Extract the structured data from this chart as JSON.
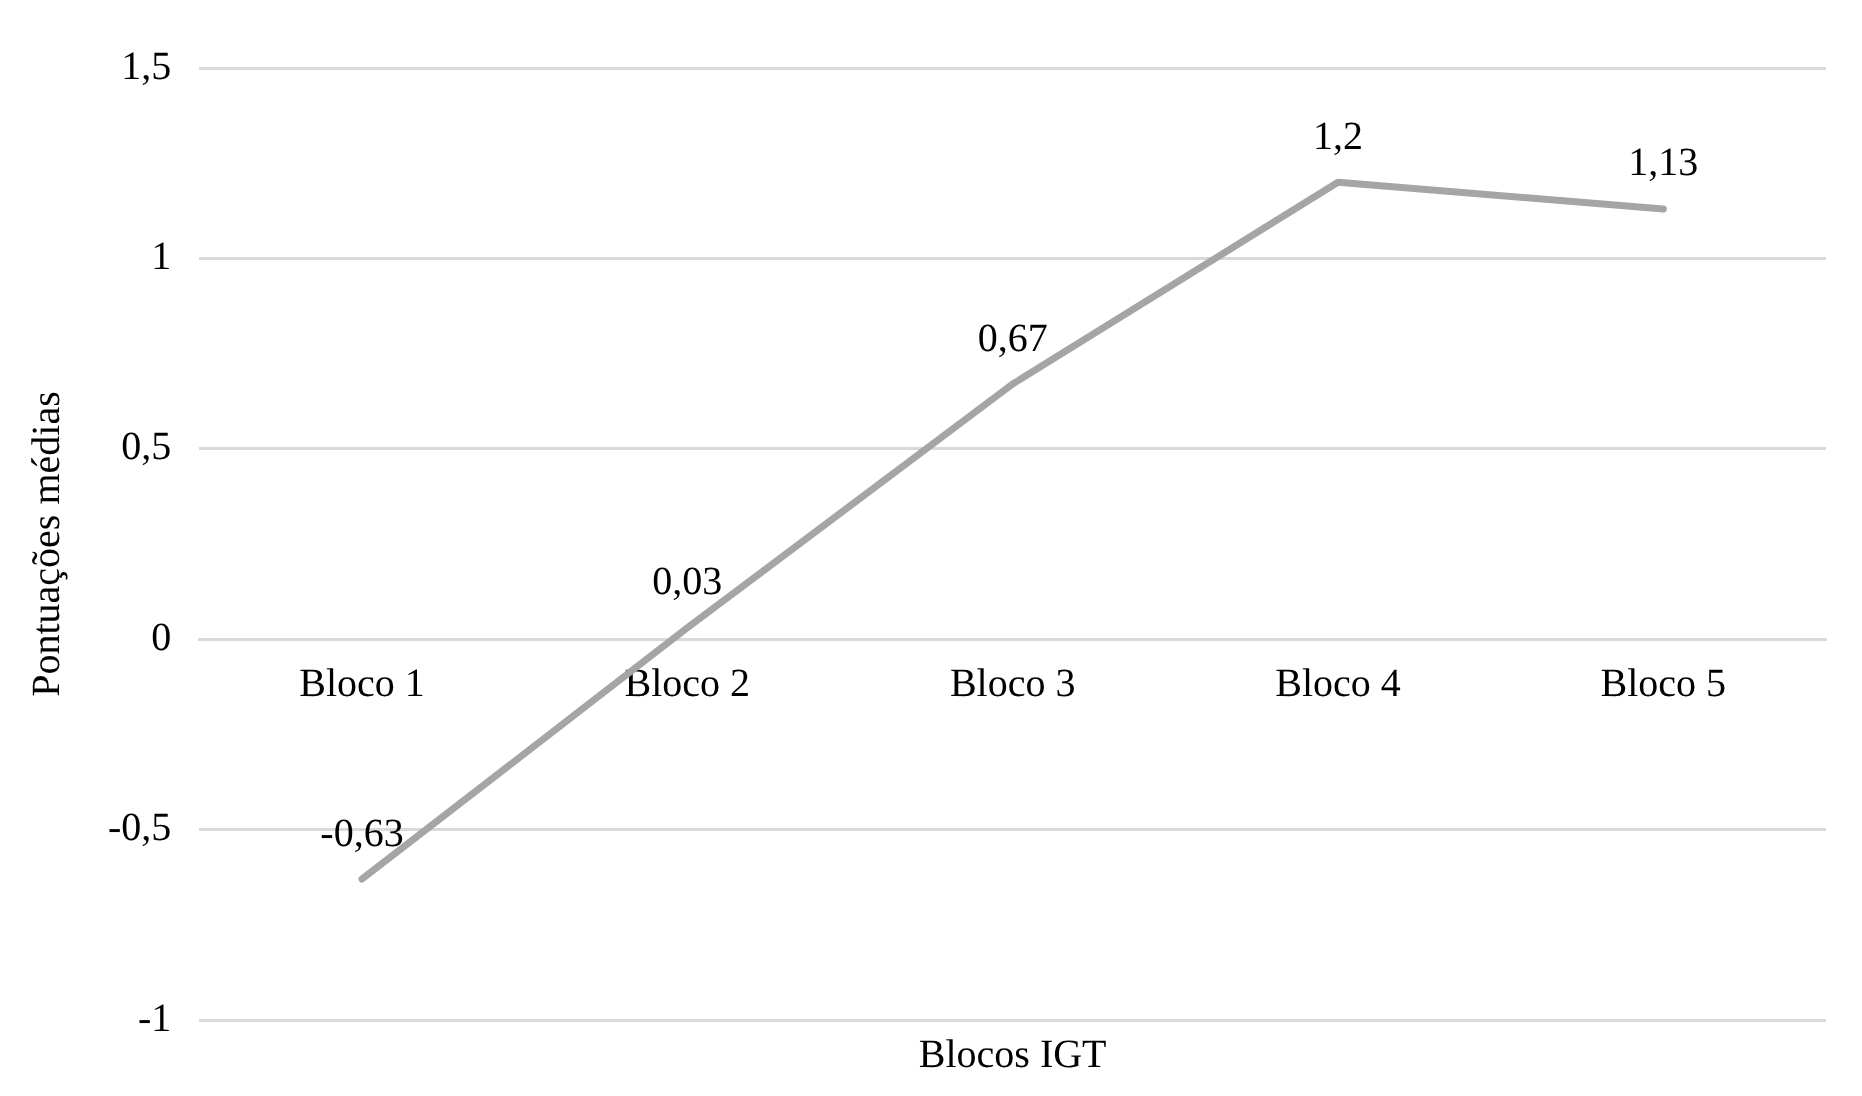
{
  "chart_data": {
    "type": "line",
    "xlabel": "Blocos IGT",
    "ylabel": "Pontuações médias",
    "categories": [
      "Bloco 1",
      "Bloco 2",
      "Bloco 3",
      "Bloco 4",
      "Bloco 5"
    ],
    "series": [
      {
        "color": "#a5a5a5",
        "values": [
          -0.63,
          0.03,
          0.67,
          1.2,
          1.13
        ],
        "value_labels": [
          "-0,63",
          "0,03",
          "0,67",
          "1,2",
          "1,13"
        ]
      }
    ],
    "ylim": [
      -1,
      1.5
    ],
    "yticks": [
      -1,
      {
        "value": -0.5,
        "label": "-0,5"
      },
      0,
      {
        "value": 0.5,
        "label": "0,5"
      },
      1,
      {
        "value": 1.5,
        "label": "1,5"
      }
    ],
    "grid": "y",
    "legend": false,
    "marker": "none",
    "line_style": "solid"
  }
}
